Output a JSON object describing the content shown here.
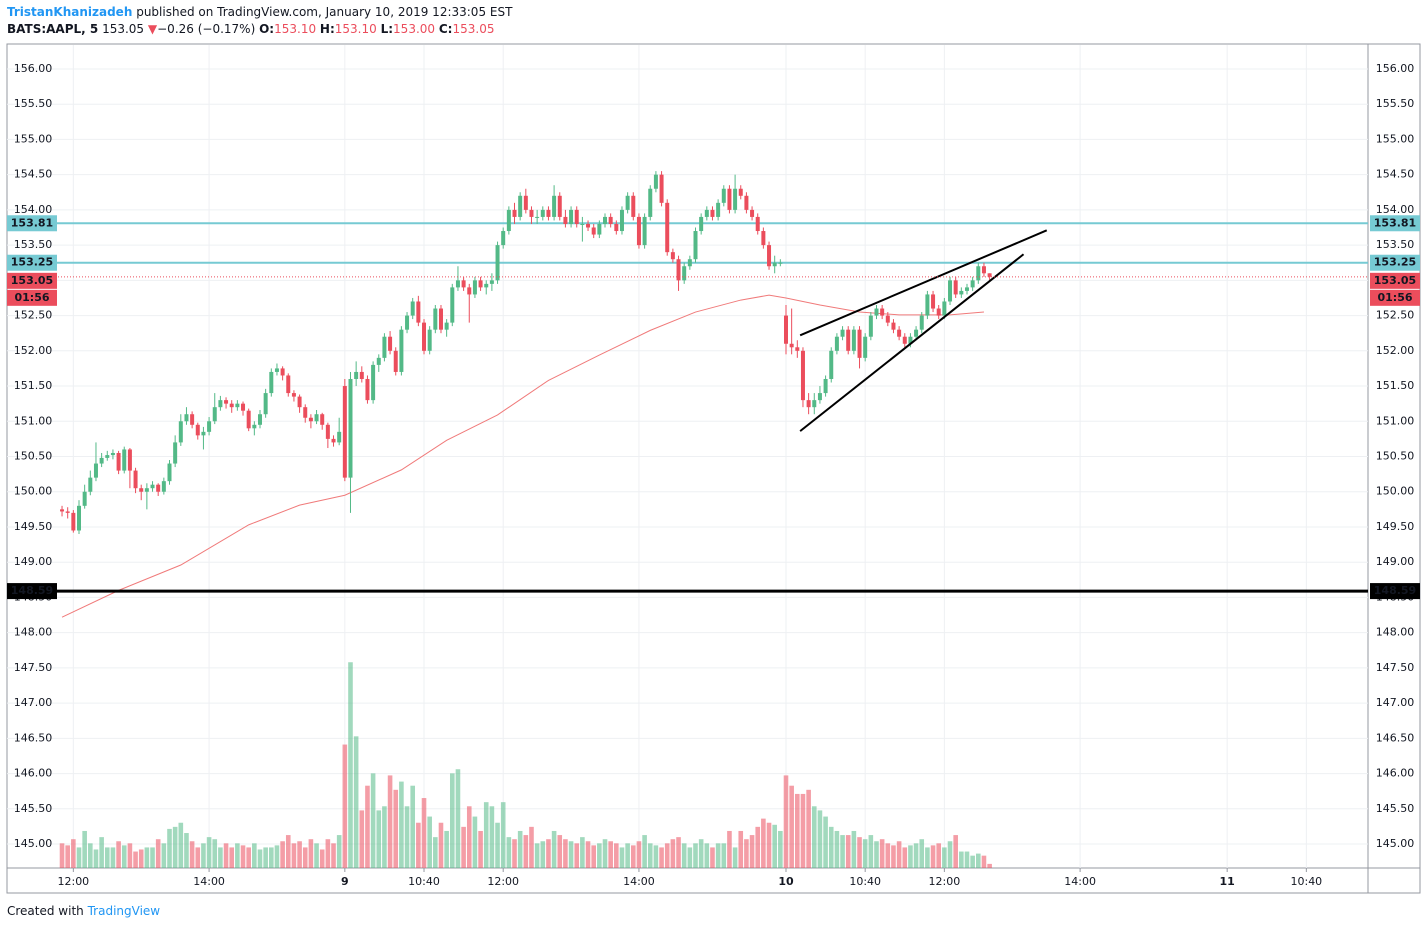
{
  "header": {
    "author": "TristanKhanizadeh",
    "published": "published on TradingView.com, January 10, 2019 12:33:05 EST",
    "symbol": "BATS:AAPL, 5",
    "last": "153.05",
    "arrow": "▼",
    "change": "−0.26 (−0.17%)",
    "ohlc": [
      {
        "label": "O:",
        "value": "153.10"
      },
      {
        "label": "H:",
        "value": "153.10"
      },
      {
        "label": "L:",
        "value": "153.00"
      },
      {
        "label": "C:",
        "value": "153.05"
      }
    ]
  },
  "footer": {
    "created": "Created with",
    "brand": "TradingView"
  },
  "chart_data": {
    "type": "candlestick",
    "up_color": "#53b987",
    "down_color": "#eb4d5c",
    "grid": true,
    "xlim": [
      -9.73,
      230.9
    ],
    "xticks": [
      {
        "value": 2,
        "label": "12:00"
      },
      {
        "value": 26,
        "label": "14:00"
      },
      {
        "value": 50,
        "label": "9"
      },
      {
        "value": 64,
        "label": "10:40"
      },
      {
        "value": 78,
        "label": "12:00"
      },
      {
        "value": 102,
        "label": "14:00"
      },
      {
        "value": 128,
        "label": "10"
      },
      {
        "value": 142,
        "label": "10:40"
      },
      {
        "value": 156,
        "label": "12:00"
      },
      {
        "value": 180,
        "label": "14:00"
      },
      {
        "value": 206,
        "label": "11"
      },
      {
        "value": 220,
        "label": "10:40"
      }
    ],
    "ylim": [
      144.66,
      156.34
    ],
    "yticks": [
      {
        "value": 145,
        "label": "145.00"
      },
      {
        "value": 145.5,
        "label": "145.50"
      },
      {
        "value": 146,
        "label": "146.00"
      },
      {
        "value": 146.5,
        "label": "146.50"
      },
      {
        "value": 147,
        "label": "147.00"
      },
      {
        "value": 147.5,
        "label": "147.50"
      },
      {
        "value": 148,
        "label": "148.00"
      },
      {
        "value": 148.5,
        "label": "148.50"
      },
      {
        "value": 149,
        "label": "149.00"
      },
      {
        "value": 149.5,
        "label": "149.50"
      },
      {
        "value": 150,
        "label": "150.00"
      },
      {
        "value": 150.5,
        "label": "150.50"
      },
      {
        "value": 151,
        "label": "151.00"
      },
      {
        "value": 151.5,
        "label": "151.50"
      },
      {
        "value": 152,
        "label": "152.00"
      },
      {
        "value": 152.5,
        "label": "152.50"
      },
      {
        "value": 153,
        "label": "153.00"
      },
      {
        "value": 153.5,
        "label": "153.50"
      },
      {
        "value": 154,
        "label": "154.00"
      },
      {
        "value": 154.5,
        "label": "154.50"
      },
      {
        "value": 155,
        "label": "155.00"
      },
      {
        "value": 155.5,
        "label": "155.50"
      },
      {
        "value": 156,
        "label": "156.00"
      }
    ],
    "candles": [
      [
        149.75,
        149.8,
        149.65,
        149.72
      ],
      [
        149.72,
        149.78,
        149.62,
        149.7
      ],
      [
        149.7,
        149.74,
        149.42,
        149.45
      ],
      [
        149.45,
        149.88,
        149.4,
        149.8
      ],
      [
        149.8,
        150.1,
        149.76,
        150
      ],
      [
        150,
        150.3,
        149.95,
        150.2
      ],
      [
        150.2,
        150.7,
        150.15,
        150.4
      ],
      [
        150.4,
        150.55,
        150.35,
        150.48
      ],
      [
        150.48,
        150.58,
        150.44,
        150.52
      ],
      [
        150.52,
        150.6,
        150.46,
        150.55
      ],
      [
        150.55,
        150.58,
        150.25,
        150.3
      ],
      [
        150.3,
        150.64,
        150.26,
        150.6
      ],
      [
        150.6,
        150.62,
        150.05,
        150.3
      ],
      [
        150.3,
        150.34,
        149.98,
        150.05
      ],
      [
        150.05,
        150.1,
        149.88,
        150
      ],
      [
        150,
        150.12,
        149.75,
        150.05
      ],
      [
        150.05,
        150.15,
        150,
        150.1
      ],
      [
        150.1,
        150.12,
        149.94,
        150
      ],
      [
        150,
        150.2,
        149.96,
        150.15
      ],
      [
        150.15,
        150.45,
        150.1,
        150.4
      ],
      [
        150.4,
        150.8,
        150.35,
        150.7
      ],
      [
        150.7,
        151.1,
        150.65,
        151
      ],
      [
        151,
        151.2,
        150.95,
        151.1
      ],
      [
        151.1,
        151.14,
        150.9,
        150.95
      ],
      [
        150.95,
        150.98,
        150.74,
        150.8
      ],
      [
        150.8,
        150.92,
        150.6,
        150.85
      ],
      [
        150.85,
        151.06,
        150.8,
        151
      ],
      [
        151,
        151.4,
        150.96,
        151.2
      ],
      [
        151.2,
        151.36,
        151.15,
        151.3
      ],
      [
        151.3,
        151.34,
        151.18,
        151.25
      ],
      [
        151.25,
        151.3,
        151.12,
        151.2
      ],
      [
        151.2,
        151.3,
        151.15,
        151.25
      ],
      [
        151.25,
        151.28,
        151.08,
        151.15
      ],
      [
        151.15,
        151.18,
        150.86,
        150.9
      ],
      [
        150.9,
        151,
        150.8,
        150.95
      ],
      [
        150.95,
        151.16,
        150.9,
        151.1
      ],
      [
        151.1,
        151.46,
        151.05,
        151.4
      ],
      [
        151.4,
        151.75,
        151.35,
        151.7
      ],
      [
        151.7,
        151.82,
        151.65,
        151.75
      ],
      [
        151.75,
        151.78,
        151.58,
        151.65
      ],
      [
        151.65,
        151.68,
        151.35,
        151.4
      ],
      [
        151.4,
        151.44,
        151.28,
        151.35
      ],
      [
        151.35,
        151.38,
        151.12,
        151.2
      ],
      [
        151.2,
        151.24,
        150.98,
        151.05
      ],
      [
        151.05,
        151.1,
        150.9,
        151
      ],
      [
        151,
        151.16,
        150.96,
        151.1
      ],
      [
        151.1,
        151.12,
        150.88,
        150.95
      ],
      [
        150.95,
        150.98,
        150.62,
        150.75
      ],
      [
        150.75,
        150.8,
        150.64,
        150.7
      ],
      [
        150.7,
        151.05,
        150.66,
        150.85
      ],
      [
        151.5,
        151.6,
        150.15,
        150.2
      ],
      [
        150.2,
        151.7,
        149.7,
        151.6
      ],
      [
        151.6,
        151.85,
        151.5,
        151.7
      ],
      [
        151.7,
        151.78,
        151.55,
        151.6
      ],
      [
        151.6,
        151.65,
        151.25,
        151.3
      ],
      [
        151.3,
        151.85,
        151.25,
        151.8
      ],
      [
        151.8,
        151.95,
        151.7,
        151.9
      ],
      [
        151.9,
        152.25,
        151.85,
        152.2
      ],
      [
        152.2,
        152.28,
        151.95,
        152
      ],
      [
        152,
        152.05,
        151.65,
        151.7
      ],
      [
        151.7,
        152.35,
        151.65,
        152.3
      ],
      [
        152.3,
        152.55,
        152.25,
        152.5
      ],
      [
        152.5,
        152.75,
        152.45,
        152.7
      ],
      [
        152.7,
        152.78,
        152.35,
        152.4
      ],
      [
        152.4,
        152.45,
        151.95,
        152
      ],
      [
        152,
        152.35,
        151.95,
        152.3
      ],
      [
        152.3,
        152.65,
        152.25,
        152.6
      ],
      [
        152.6,
        152.65,
        152.25,
        152.3
      ],
      [
        152.3,
        152.45,
        152.2,
        152.4
      ],
      [
        152.4,
        152.95,
        152.35,
        152.9
      ],
      [
        152.9,
        153.2,
        152.85,
        153
      ],
      [
        153,
        153.05,
        152.85,
        152.9
      ],
      [
        152.9,
        152.95,
        152.4,
        152.8
      ],
      [
        152.8,
        153.05,
        152.75,
        153
      ],
      [
        153,
        153.05,
        152.85,
        152.9
      ],
      [
        152.9,
        153,
        152.8,
        152.95
      ],
      [
        152.95,
        153.1,
        152.85,
        153
      ],
      [
        153,
        153.55,
        152.95,
        153.5
      ],
      [
        153.5,
        153.75,
        153.45,
        153.7
      ],
      [
        153.7,
        154.05,
        153.65,
        154
      ],
      [
        154,
        154.1,
        153.8,
        153.9
      ],
      [
        153.9,
        154.25,
        153.85,
        154.2
      ],
      [
        154.2,
        154.3,
        153.95,
        154
      ],
      [
        154,
        154.05,
        153.8,
        153.9
      ],
      [
        153.9,
        154,
        153.8,
        153.9
      ],
      [
        153.9,
        154.05,
        153.85,
        154
      ],
      [
        154,
        154.05,
        153.85,
        153.9
      ],
      [
        153.9,
        154.35,
        153.85,
        154.2
      ],
      [
        154.2,
        154.25,
        153.85,
        153.9
      ],
      [
        153.9,
        154,
        153.75,
        153.8
      ],
      [
        153.8,
        154.05,
        153.75,
        154
      ],
      [
        154,
        154.05,
        153.75,
        153.8
      ],
      [
        153.8,
        153.9,
        153.55,
        153.8
      ],
      [
        153.8,
        153.85,
        153.7,
        153.75
      ],
      [
        153.75,
        153.8,
        153.6,
        153.65
      ],
      [
        153.65,
        153.85,
        153.6,
        153.8
      ],
      [
        153.8,
        153.95,
        153.75,
        153.9
      ],
      [
        153.9,
        153.95,
        153.75,
        153.8
      ],
      [
        153.8,
        153.85,
        153.65,
        153.7
      ],
      [
        153.7,
        154.05,
        153.65,
        154
      ],
      [
        154,
        154.25,
        153.95,
        154.2
      ],
      [
        154.2,
        154.25,
        153.85,
        153.9
      ],
      [
        153.9,
        153.95,
        153.45,
        153.5
      ],
      [
        153.5,
        153.95,
        153.45,
        153.9
      ],
      [
        153.9,
        154.35,
        153.85,
        154.3
      ],
      [
        154.3,
        154.55,
        154.25,
        154.5
      ],
      [
        154.5,
        154.55,
        154.05,
        154.1
      ],
      [
        154.1,
        154.15,
        153.35,
        153.4
      ],
      [
        153.4,
        153.45,
        153.25,
        153.3
      ],
      [
        153.3,
        153.35,
        152.85,
        153
      ],
      [
        153,
        153.25,
        152.95,
        153.2
      ],
      [
        153.2,
        153.35,
        153.15,
        153.3
      ],
      [
        153.3,
        153.75,
        153.25,
        153.7
      ],
      [
        153.7,
        153.95,
        153.65,
        153.9
      ],
      [
        153.9,
        154.05,
        153.85,
        154
      ],
      [
        154,
        154.05,
        153.85,
        153.9
      ],
      [
        153.9,
        154.15,
        153.85,
        154.1
      ],
      [
        154.1,
        154.35,
        154.05,
        154.3
      ],
      [
        154.3,
        154.35,
        153.95,
        154
      ],
      [
        154,
        154.5,
        153.95,
        154.3
      ],
      [
        154.3,
        154.35,
        154.15,
        154.2
      ],
      [
        154.2,
        154.25,
        153.95,
        154
      ],
      [
        154,
        154.05,
        153.85,
        153.9
      ],
      [
        153.9,
        153.95,
        153.65,
        153.7
      ],
      [
        153.7,
        153.75,
        153.45,
        153.5
      ],
      [
        153.5,
        153.55,
        153.15,
        153.2
      ],
      [
        153.2,
        153.35,
        153.1,
        153.25
      ],
      [
        153.25,
        153.3,
        153.2,
        153.25
      ],
      [
        152.5,
        152.65,
        151.95,
        152.1
      ],
      [
        152.1,
        152.6,
        151.95,
        152.05
      ],
      [
        152.05,
        152.15,
        151.9,
        152
      ],
      [
        152,
        152.05,
        151.2,
        151.3
      ],
      [
        151.3,
        151.4,
        151.1,
        151.2
      ],
      [
        151.2,
        151.4,
        151.1,
        151.3
      ],
      [
        151.3,
        151.5,
        151.25,
        151.4
      ],
      [
        151.4,
        151.65,
        151.35,
        151.6
      ],
      [
        151.6,
        152.05,
        151.55,
        152
      ],
      [
        152,
        152.25,
        151.95,
        152.2
      ],
      [
        152.2,
        152.35,
        152.15,
        152.3
      ],
      [
        152.3,
        152.35,
        151.95,
        152
      ],
      [
        152,
        152.35,
        151.95,
        152.3
      ],
      [
        152.3,
        152.35,
        151.75,
        151.9
      ],
      [
        151.9,
        152.25,
        151.85,
        152.2
      ],
      [
        152.2,
        152.55,
        152.15,
        152.5
      ],
      [
        152.5,
        152.65,
        152.45,
        152.6
      ],
      [
        152.6,
        152.65,
        152.45,
        152.5
      ],
      [
        152.5,
        152.55,
        152.35,
        152.4
      ],
      [
        152.4,
        152.45,
        152.25,
        152.3
      ],
      [
        152.3,
        152.35,
        152.15,
        152.2
      ],
      [
        152.2,
        152.25,
        152.05,
        152.1
      ],
      [
        152.1,
        152.25,
        152.05,
        152.2
      ],
      [
        152.2,
        152.35,
        152.15,
        152.3
      ],
      [
        152.3,
        152.55,
        152.25,
        152.5
      ],
      [
        152.5,
        152.85,
        152.45,
        152.8
      ],
      [
        152.8,
        152.85,
        152.55,
        152.6
      ],
      [
        152.6,
        152.65,
        152.45,
        152.5
      ],
      [
        152.5,
        152.75,
        152.45,
        152.7
      ],
      [
        152.7,
        153.05,
        152.65,
        153
      ],
      [
        153,
        153.05,
        152.75,
        152.8
      ],
      [
        152.8,
        152.9,
        152.75,
        152.85
      ],
      [
        152.85,
        152.95,
        152.8,
        152.9
      ],
      [
        152.9,
        153.05,
        152.85,
        153
      ],
      [
        153,
        153.25,
        152.95,
        153.2
      ],
      [
        153.2,
        153.25,
        153.05,
        153.1
      ],
      [
        153.1,
        153.1,
        153,
        153.05
      ]
    ],
    "volume_lim": [
      0,
      400
    ],
    "volume": [
      12,
      11,
      14,
      10,
      18,
      12,
      9,
      15,
      10,
      10,
      13,
      11,
      12,
      8,
      9,
      10,
      10,
      14,
      12,
      19,
      20,
      22,
      17,
      13,
      10,
      12,
      15,
      14,
      10,
      12,
      10,
      12,
      11,
      10,
      12,
      9,
      10,
      10,
      11,
      13,
      16,
      12,
      13,
      10,
      14,
      12,
      9,
      14,
      12,
      16,
      60,
      100,
      64,
      28,
      40,
      46,
      28,
      30,
      45,
      38,
      42,
      30,
      40,
      22,
      34,
      25,
      15,
      22,
      18,
      46,
      48,
      20,
      30,
      25,
      18,
      32,
      30,
      22,
      32,
      15,
      14,
      18,
      16,
      20,
      12,
      13,
      14,
      18,
      16,
      14,
      13,
      12,
      15,
      13,
      11,
      12,
      14,
      13,
      12,
      10,
      12,
      11,
      13,
      16,
      12,
      11,
      10,
      12,
      14,
      15,
      12,
      10,
      12,
      14,
      12,
      10,
      12,
      12,
      18,
      10,
      18,
      14,
      16,
      20,
      24,
      22,
      21,
      18,
      45,
      40,
      36,
      36,
      38,
      30,
      28,
      25,
      20,
      18,
      16,
      16,
      18,
      15,
      14,
      16,
      13,
      14,
      12,
      11,
      13,
      10,
      11,
      12,
      14,
      10,
      11,
      12,
      10,
      13,
      16,
      8,
      8,
      6,
      7,
      6,
      2
    ],
    "ma": {
      "color": "#f07a7a",
      "x": [
        0,
        10,
        21,
        33,
        42,
        50,
        60,
        68,
        77,
        86,
        95,
        104,
        112,
        120,
        125,
        128,
        134,
        141,
        148,
        157,
        163
      ],
      "values": [
        148.22,
        148.6,
        148.96,
        149.53,
        149.81,
        149.95,
        150.31,
        150.73,
        151.09,
        151.58,
        151.94,
        152.29,
        152.55,
        152.72,
        152.79,
        152.75,
        152.65,
        152.55,
        152.51,
        152.51,
        152.55
      ]
    },
    "trendlines": [
      {
        "color": "#000000",
        "x": [
          130.5,
          174.1
        ],
        "y": [
          152.22,
          153.71
        ]
      },
      {
        "color": "#000000",
        "x": [
          130.5,
          170.0
        ],
        "y": [
          150.86,
          153.37
        ]
      }
    ],
    "levels": [
      {
        "value": 153.81,
        "color": "#76cad3",
        "text_color": "#131722",
        "width": 2
      },
      {
        "value": 153.25,
        "color": "#76cad3",
        "text_color": "#131722",
        "width": 2
      },
      {
        "value": 148.59,
        "color": "#000000",
        "text_color": "#ffffff",
        "width": 3
      }
    ],
    "last_price": {
      "value": 153.05,
      "color": "#eb4d5c",
      "countdown": "01:56"
    }
  }
}
